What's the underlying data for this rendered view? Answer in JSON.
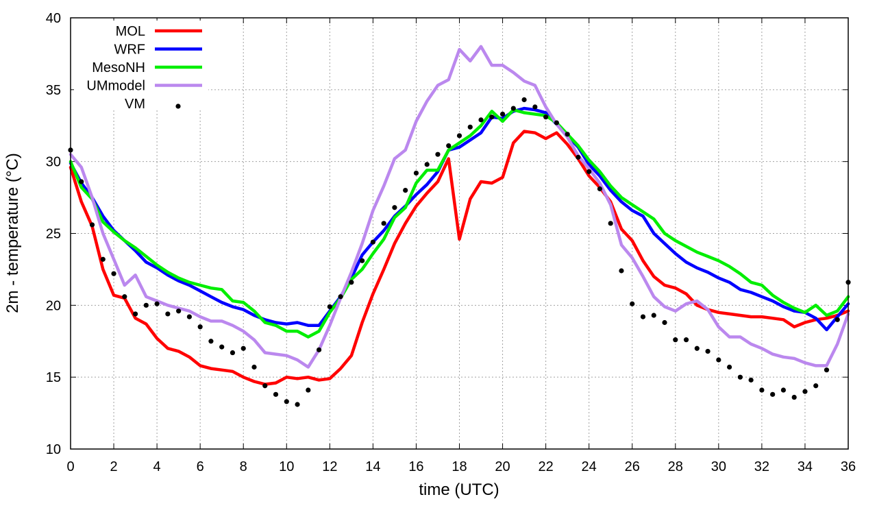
{
  "chart_data": {
    "type": "line",
    "title": "",
    "xlabel": "time (UTC)",
    "ylabel": "2m - temperature (°C)",
    "xlim": [
      0,
      36
    ],
    "ylim": [
      10,
      40
    ],
    "xticks": [
      0,
      2,
      4,
      6,
      8,
      10,
      12,
      14,
      16,
      18,
      20,
      22,
      24,
      26,
      28,
      30,
      32,
      34,
      36
    ],
    "yticks": [
      10,
      15,
      20,
      25,
      30,
      35,
      40
    ],
    "xtick_labels": [
      "0",
      "2",
      "4",
      "6",
      "8",
      "10",
      "12",
      "14",
      "16",
      "18",
      "20",
      "22",
      "24",
      "26",
      "28",
      "30",
      "32",
      "34",
      "36"
    ],
    "ytick_labels": [
      "10",
      "15",
      "20",
      "25",
      "30",
      "35",
      "40"
    ],
    "grid": true,
    "legend_position": "top-left",
    "series": [
      {
        "name": "MOL",
        "color": "#ff0000",
        "style": "line",
        "x": [
          0,
          0.5,
          1,
          1.5,
          2,
          2.5,
          3,
          3.5,
          4,
          4.5,
          5,
          5.5,
          6,
          6.5,
          7,
          7.5,
          8,
          8.5,
          9,
          9.5,
          10,
          10.5,
          11,
          11.5,
          12,
          12.5,
          13,
          13.5,
          14,
          14.5,
          15,
          15.5,
          16,
          16.5,
          17,
          17.5,
          18,
          18.5,
          19,
          19.5,
          20,
          20.5,
          21,
          21.5,
          22,
          22.5,
          23,
          23.5,
          24,
          24.5,
          25,
          25.5,
          26,
          26.5,
          27,
          27.5,
          28,
          28.5,
          29,
          29.5,
          30,
          30.5,
          31,
          31.5,
          32,
          32.5,
          33,
          33.5,
          34,
          34.5,
          35,
          35.5,
          36
        ],
        "values": [
          29.6,
          27.2,
          25.5,
          22.5,
          20.7,
          20.5,
          19.1,
          18.7,
          17.7,
          17.0,
          16.8,
          16.4,
          15.8,
          15.6,
          15.5,
          15.4,
          15.0,
          14.7,
          14.5,
          14.6,
          15.0,
          14.9,
          15.0,
          14.8,
          14.9,
          15.6,
          16.5,
          18.8,
          20.8,
          22.5,
          24.3,
          25.7,
          26.9,
          27.8,
          28.6,
          30.2,
          24.6,
          27.4,
          28.6,
          28.5,
          28.9,
          31.3,
          32.1,
          32.0,
          31.6,
          32.0,
          31.2,
          30.2,
          29.0,
          28.2,
          27.2,
          25.3,
          24.5,
          23.1,
          22.0,
          21.4,
          21.2,
          20.8,
          20.0,
          19.7,
          19.5,
          19.4,
          19.3,
          19.2,
          19.2,
          19.1,
          19.0,
          18.5,
          18.8,
          19.0,
          19.1,
          19.3,
          19.6
        ]
      },
      {
        "name": "WRF",
        "color": "#0000ff",
        "style": "line",
        "x": [
          0,
          0.5,
          1,
          1.5,
          2,
          2.5,
          3,
          3.5,
          4,
          4.5,
          5,
          5.5,
          6,
          6.5,
          7,
          7.5,
          8,
          8.5,
          9,
          9.5,
          10,
          10.5,
          11,
          11.5,
          12,
          12.5,
          13,
          13.5,
          14,
          14.5,
          15,
          15.5,
          16,
          16.5,
          17,
          17.5,
          18,
          18.5,
          19,
          19.5,
          20,
          20.5,
          21,
          21.5,
          22,
          22.5,
          23,
          23.5,
          24,
          24.5,
          25,
          25.5,
          26,
          26.5,
          27,
          27.5,
          28,
          28.5,
          29,
          29.5,
          30,
          30.5,
          31,
          31.5,
          32,
          32.5,
          33,
          33.5,
          34,
          34.5,
          35,
          35.5,
          36
        ],
        "values": [
          29.9,
          28.5,
          27.5,
          26.2,
          25.2,
          24.5,
          23.8,
          23.0,
          22.6,
          22.1,
          21.7,
          21.4,
          21.0,
          20.6,
          20.2,
          19.9,
          19.7,
          19.3,
          19.0,
          18.8,
          18.7,
          18.8,
          18.6,
          18.6,
          19.6,
          20.6,
          21.9,
          23.5,
          24.4,
          25.2,
          26.2,
          26.9,
          27.7,
          28.4,
          29.3,
          30.8,
          31.0,
          31.5,
          32.0,
          33.1,
          33.0,
          33.5,
          33.7,
          33.6,
          33.4,
          32.6,
          31.8,
          31.0,
          29.8,
          29.0,
          28.0,
          27.2,
          26.6,
          26.2,
          25.0,
          24.3,
          23.6,
          23.0,
          22.6,
          22.3,
          21.9,
          21.6,
          21.1,
          20.9,
          20.6,
          20.3,
          19.9,
          19.6,
          19.5,
          19.1,
          18.3,
          19.2,
          20.1
        ]
      },
      {
        "name": "MesoNH",
        "color": "#00ee00",
        "style": "line",
        "x": [
          0,
          0.5,
          1,
          1.5,
          2,
          2.5,
          3,
          3.5,
          4,
          4.5,
          5,
          5.5,
          6,
          6.5,
          7,
          7.5,
          8,
          8.5,
          9,
          9.5,
          10,
          10.5,
          11,
          11.5,
          12,
          12.5,
          13,
          13.5,
          14,
          14.5,
          15,
          15.5,
          16,
          16.5,
          17,
          17.5,
          18,
          18.5,
          19,
          19.5,
          20,
          20.5,
          21,
          21.5,
          22,
          22.5,
          23,
          23.5,
          24,
          24.5,
          25,
          25.5,
          26,
          26.5,
          27,
          27.5,
          28,
          28.5,
          29,
          29.5,
          30,
          30.5,
          31,
          31.5,
          32,
          32.5,
          33,
          33.5,
          34,
          34.5,
          35,
          35.5,
          36
        ],
        "values": [
          30.0,
          28.2,
          27.4,
          25.8,
          25.1,
          24.5,
          24.0,
          23.4,
          22.8,
          22.3,
          21.9,
          21.6,
          21.4,
          21.2,
          21.1,
          20.3,
          20.2,
          19.6,
          18.8,
          18.6,
          18.2,
          18.2,
          17.8,
          18.2,
          19.5,
          20.5,
          21.8,
          22.5,
          23.6,
          24.6,
          26.1,
          26.8,
          28.5,
          29.4,
          29.4,
          30.8,
          31.3,
          31.8,
          32.5,
          33.5,
          32.8,
          33.6,
          33.4,
          33.3,
          33.2,
          32.7,
          31.9,
          31.1,
          30.1,
          29.3,
          28.3,
          27.5,
          27.0,
          26.5,
          26.0,
          25.0,
          24.5,
          24.1,
          23.7,
          23.4,
          23.1,
          22.7,
          22.2,
          21.6,
          21.4,
          20.7,
          20.2,
          19.8,
          19.5,
          20.0,
          19.3,
          19.6,
          20.6
        ]
      },
      {
        "name": "UMmodel",
        "color": "#bb88ee",
        "style": "line",
        "x": [
          0,
          0.5,
          1,
          1.5,
          2,
          2.5,
          3,
          3.5,
          4,
          4.5,
          5,
          5.5,
          6,
          6.5,
          7,
          7.5,
          8,
          8.5,
          9,
          9.5,
          10,
          10.5,
          11,
          11.5,
          12,
          12.5,
          13,
          13.5,
          14,
          14.5,
          15,
          15.5,
          16,
          16.5,
          17,
          17.5,
          18,
          18.5,
          19,
          19.5,
          20,
          20.5,
          21,
          21.5,
          22,
          22.5,
          23,
          23.5,
          24,
          24.5,
          25,
          25.5,
          26,
          26.5,
          27,
          27.5,
          28,
          28.5,
          29,
          29.5,
          30,
          30.5,
          31,
          31.5,
          32,
          32.5,
          33,
          33.5,
          34,
          34.5,
          35,
          35.5,
          36
        ],
        "values": [
          30.5,
          29.6,
          27.5,
          25.0,
          23.2,
          21.4,
          22.1,
          20.6,
          20.3,
          20.0,
          19.8,
          19.6,
          19.2,
          18.9,
          18.9,
          18.6,
          18.2,
          17.6,
          16.7,
          16.6,
          16.5,
          16.2,
          15.7,
          16.9,
          18.6,
          20.5,
          22.3,
          24.3,
          26.6,
          28.3,
          30.2,
          30.8,
          32.8,
          34.2,
          35.3,
          35.7,
          37.8,
          37.0,
          38.0,
          36.7,
          36.7,
          36.2,
          35.6,
          35.3,
          33.8,
          32.6,
          31.7,
          30.4,
          29.5,
          28.5,
          27.0,
          24.2,
          23.3,
          22.0,
          20.6,
          19.9,
          19.6,
          20.1,
          20.3,
          19.7,
          18.5,
          17.8,
          17.8,
          17.3,
          17.0,
          16.6,
          16.4,
          16.3,
          16.0,
          15.8,
          15.8,
          17.3,
          19.4
        ]
      },
      {
        "name": "VM",
        "color": "#000000",
        "style": "points",
        "x": [
          0,
          0.5,
          1,
          1.5,
          2,
          2.5,
          3,
          3.5,
          4,
          4.5,
          5,
          5.5,
          6,
          6.5,
          7,
          7.5,
          8,
          8.5,
          9,
          9.5,
          10,
          10.5,
          11,
          11.5,
          12,
          12.5,
          13,
          13.5,
          14,
          14.5,
          15,
          15.5,
          16,
          16.5,
          17,
          17.5,
          18,
          18.5,
          19,
          19.5,
          20,
          20.5,
          21,
          21.5,
          22,
          22.5,
          23,
          23.5,
          24,
          24.5,
          25,
          25.5,
          26,
          26.5,
          27,
          27.5,
          28,
          28.5,
          29,
          29.5,
          30,
          30.5,
          31,
          31.5,
          32,
          32.5,
          33,
          33.5,
          34,
          34.5,
          35,
          35.5,
          36
        ],
        "values": [
          30.8,
          28.6,
          25.6,
          23.2,
          22.2,
          20.6,
          19.4,
          20.0,
          20.1,
          19.4,
          19.6,
          19.2,
          18.5,
          17.5,
          17.1,
          16.7,
          17.0,
          15.7,
          14.4,
          13.8,
          13.3,
          13.1,
          14.1,
          16.9,
          19.9,
          20.6,
          21.6,
          23.1,
          24.4,
          25.7,
          26.8,
          28.0,
          29.2,
          29.8,
          30.5,
          31.1,
          31.8,
          32.4,
          32.9,
          33.1,
          33.3,
          33.7,
          34.3,
          33.8,
          33.1,
          32.7,
          31.9,
          30.3,
          29.3,
          28.1,
          25.7,
          22.4,
          20.1,
          19.2,
          19.3,
          18.8,
          17.6,
          17.6,
          17.0,
          16.8,
          16.2,
          15.7,
          15.0,
          14.8,
          14.1,
          13.8,
          14.1,
          13.6,
          14.0,
          14.4,
          15.5,
          19.0,
          21.6
        ]
      }
    ]
  }
}
